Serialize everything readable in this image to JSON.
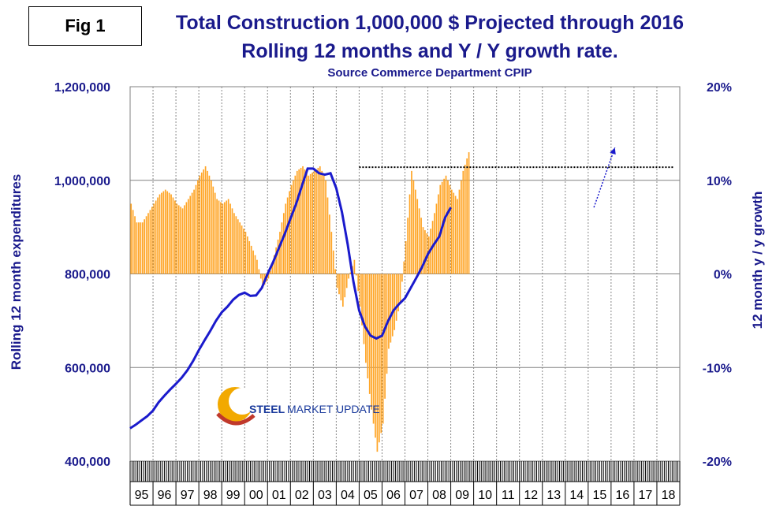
{
  "figure_label": "Fig 1",
  "chart_data": {
    "type": "bar",
    "title": "Total Construction 1,000,000 $ Projected through 2016",
    "subtitle": "Rolling 12 months and Y / Y growth rate.",
    "source": "Source Commerce Department CPIP",
    "ylabel_left": "Rolling 12 month expenditures",
    "ylabel_right": "12 month y / y growth",
    "yticks_left": [
      "1,200,000",
      "1,000,000",
      "800,000",
      "600,000",
      "400,000"
    ],
    "yticks_right": [
      "20%",
      "10%",
      "0%",
      "-10%",
      "-20%"
    ],
    "ylim_left": [
      400000,
      1200000
    ],
    "ylim_right": [
      -20,
      20
    ],
    "xticks": [
      "95",
      "96",
      "97",
      "98",
      "99",
      "00",
      "01",
      "02",
      "03",
      "04",
      "05",
      "06",
      "07",
      "08",
      "09",
      "10",
      "11",
      "12",
      "13",
      "14",
      "15",
      "16",
      "17",
      "18"
    ],
    "grid": true,
    "colors": {
      "bars": "#ffa526",
      "line": "#1a1acc",
      "text": "#1a1a8c",
      "grid": "#888888"
    },
    "series": [
      {
        "type": "bar",
        "axis": "right",
        "x_start": "1995-01",
        "x_step": "quarter",
        "values": [
          7.5,
          5.5,
          5.5,
          6.5,
          7.5,
          8.5,
          9,
          8.5,
          7.5,
          7,
          8,
          9,
          10.5,
          11.5,
          10,
          8,
          7.5,
          8,
          6.5,
          5.5,
          4.5,
          3,
          1.5,
          -1.5,
          -0.5,
          2,
          4.5,
          7.5,
          9.5,
          11,
          11.5,
          10.5,
          11,
          11.5,
          10,
          4.5,
          -1.5,
          -3.5,
          -0.5,
          1.5,
          -3.5,
          -9.5,
          -14.5,
          -19,
          -16,
          -8,
          -6,
          -3,
          3.5,
          11,
          8,
          5,
          4,
          6.5,
          9.5,
          10.5,
          9,
          8,
          11,
          13
        ]
      },
      {
        "type": "line",
        "axis": "left",
        "x_start": "1995-01",
        "x_step": "quarter",
        "values": [
          470000,
          478000,
          487000,
          496000,
          508000,
          526000,
          540000,
          553000,
          565000,
          578000,
          594000,
          614000,
          637000,
          658000,
          678000,
          700000,
          718000,
          730000,
          745000,
          755000,
          760000,
          753000,
          754000,
          770000,
          800000,
          826000,
          856000,
          885000,
          918000,
          950000,
          988000,
          1025000,
          1025000,
          1015000,
          1012000,
          1015000,
          983000,
          932000,
          863000,
          783000,
          722000,
          688000,
          668000,
          662000,
          668000,
          698000,
          722000,
          736000,
          748000,
          770000,
          792000,
          815000,
          842000,
          862000,
          880000,
          920000,
          942000
        ]
      },
      {
        "type": "line",
        "style": "dashed",
        "axis": "left",
        "name": "projection",
        "x": [
          "2015-04",
          "2016-03"
        ],
        "values": [
          942000,
          1070000
        ]
      },
      {
        "type": "line",
        "style": "dotted",
        "axis": "left",
        "name": "reference",
        "x": [
          "2005-01",
          "2018-10"
        ],
        "values": [
          1028000,
          1028000
        ]
      }
    ]
  },
  "logo": {
    "line1": "STEEL",
    "line2": "MARKET UPDATE"
  }
}
